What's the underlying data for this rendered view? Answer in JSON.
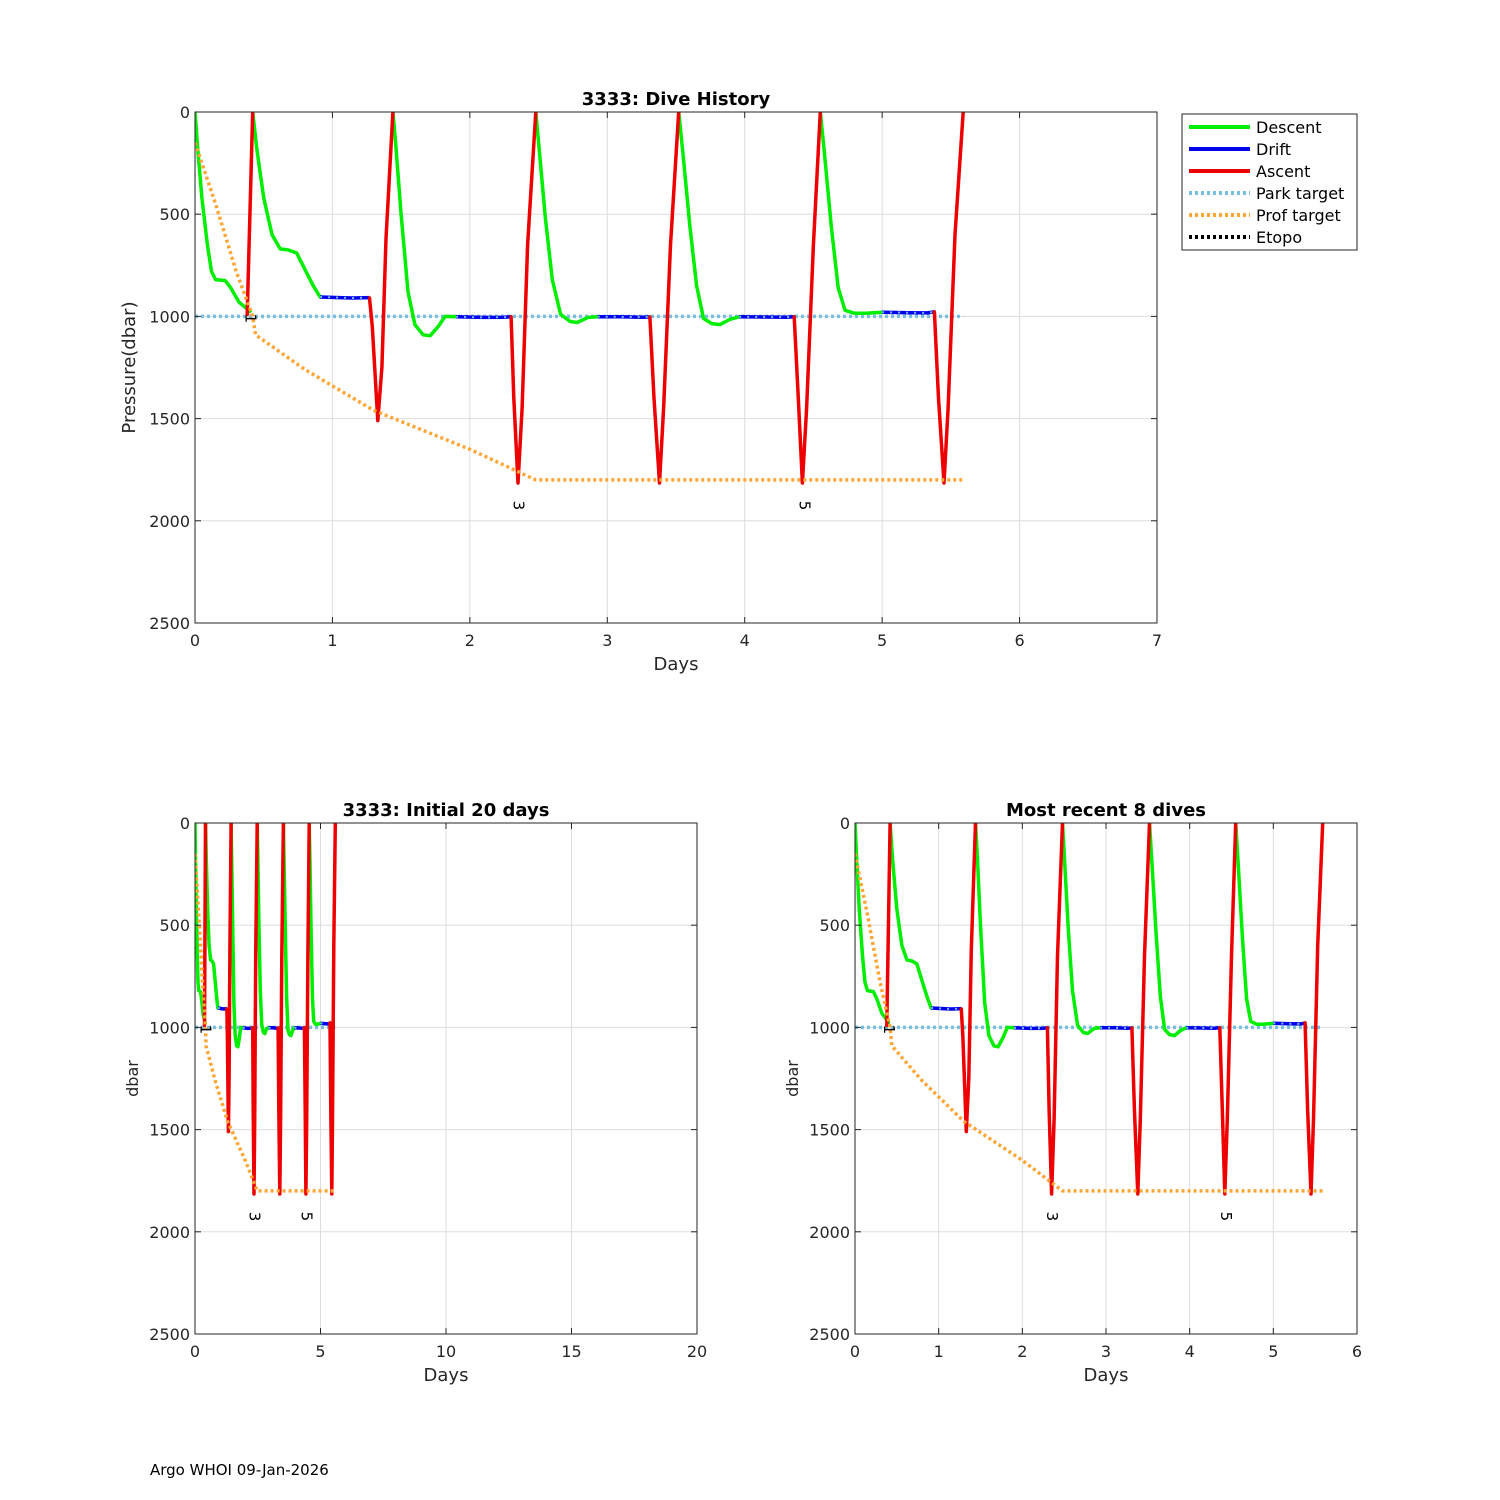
{
  "footer": "Argo WHOI 09-Jan-2026",
  "colors": {
    "descent": "#00ee00",
    "drift": "#0000ee",
    "ascent": "#ee0000",
    "park": "#77bfdf",
    "prof": "#ffa533",
    "etopo": "#000000",
    "grid": "#dddddd"
  },
  "legend": {
    "entries": [
      {
        "label": "Descent",
        "color": "#00ee00",
        "style": "solid"
      },
      {
        "label": "Drift",
        "color": "#0000ee",
        "style": "solid"
      },
      {
        "label": "Ascent",
        "color": "#ee0000",
        "style": "solid"
      },
      {
        "label": "Park target",
        "color": "#77bfdf",
        "style": "dotted"
      },
      {
        "label": "Prof target",
        "color": "#ffa533",
        "style": "dotted"
      },
      {
        "label": "Etopo",
        "color": "#000000",
        "style": "dotted"
      }
    ]
  },
  "chart_data": [
    {
      "id": "main",
      "type": "line",
      "title": "3333: Dive History",
      "xlabel": "Days",
      "ylabel": "Pressure(dbar)",
      "xlim": [
        0,
        7
      ],
      "ylim": [
        0,
        2500
      ],
      "y_reversed": true,
      "xticks": [
        0,
        1,
        2,
        3,
        4,
        5,
        6,
        7
      ],
      "yticks": [
        0,
        500,
        1000,
        1500,
        2000,
        2500
      ],
      "grid": true,
      "legend_position": "outside-top-right"
    },
    {
      "id": "initial",
      "type": "line",
      "title": "3333: Initial 20 days",
      "xlabel": "Days",
      "ylabel": "dbar",
      "xlim": [
        0,
        20
      ],
      "ylim": [
        0,
        2500
      ],
      "y_reversed": true,
      "xticks": [
        0,
        5,
        10,
        15,
        20
      ],
      "yticks": [
        0,
        500,
        1000,
        1500,
        2000,
        2500
      ],
      "grid": true
    },
    {
      "id": "recent",
      "type": "line",
      "title": "Most recent 8 dives",
      "xlabel": "Days",
      "ylabel": "dbar",
      "xlim": [
        0,
        6
      ],
      "ylim": [
        0,
        2500
      ],
      "y_reversed": true,
      "xticks": [
        0,
        1,
        2,
        3,
        4,
        5,
        6
      ],
      "yticks": [
        0,
        500,
        1000,
        1500,
        2000,
        2500
      ],
      "grid": true
    }
  ],
  "series": {
    "descent": [
      [
        [
          0,
          0
        ],
        [
          0.02,
          180
        ],
        [
          0.05,
          420
        ],
        [
          0.09,
          650
        ],
        [
          0.12,
          780
        ],
        [
          0.15,
          820
        ],
        [
          0.22,
          825
        ],
        [
          0.26,
          860
        ],
        [
          0.32,
          930
        ],
        [
          0.4,
          975
        ]
      ],
      [
        [
          0.42,
          0
        ],
        [
          0.45,
          180
        ],
        [
          0.5,
          420
        ],
        [
          0.56,
          600
        ],
        [
          0.62,
          670
        ],
        [
          0.68,
          675
        ],
        [
          0.74,
          690
        ],
        [
          0.8,
          770
        ],
        [
          0.86,
          850
        ],
        [
          0.91,
          905
        ]
      ],
      [
        [
          1.44,
          0
        ],
        [
          1.46,
          150
        ],
        [
          1.5,
          500
        ],
        [
          1.55,
          880
        ],
        [
          1.6,
          1040
        ],
        [
          1.66,
          1090
        ],
        [
          1.71,
          1095
        ],
        [
          1.77,
          1050
        ],
        [
          1.82,
          1000
        ],
        [
          1.9,
          1002
        ]
      ],
      [
        [
          2.48,
          0
        ],
        [
          2.5,
          150
        ],
        [
          2.55,
          520
        ],
        [
          2.6,
          820
        ],
        [
          2.66,
          990
        ],
        [
          2.73,
          1025
        ],
        [
          2.78,
          1030
        ],
        [
          2.86,
          1005
        ],
        [
          2.93,
          1002
        ]
      ],
      [
        [
          3.52,
          0
        ],
        [
          3.55,
          200
        ],
        [
          3.6,
          550
        ],
        [
          3.65,
          850
        ],
        [
          3.7,
          1010
        ],
        [
          3.76,
          1035
        ],
        [
          3.82,
          1040
        ],
        [
          3.89,
          1015
        ],
        [
          3.96,
          1002
        ]
      ],
      [
        [
          4.55,
          0
        ],
        [
          4.58,
          200
        ],
        [
          4.63,
          560
        ],
        [
          4.68,
          860
        ],
        [
          4.73,
          970
        ],
        [
          4.8,
          985
        ],
        [
          4.88,
          985
        ],
        [
          5.0,
          980
        ]
      ]
    ],
    "drift": [
      [
        [
          0.91,
          905
        ],
        [
          1.05,
          908
        ],
        [
          1.15,
          910
        ],
        [
          1.27,
          908
        ]
      ],
      [
        [
          1.9,
          1002
        ],
        [
          2.1,
          1005
        ],
        [
          2.25,
          1004
        ],
        [
          2.3,
          1002
        ]
      ],
      [
        [
          2.93,
          1002
        ],
        [
          3.1,
          1002
        ],
        [
          3.25,
          1004
        ],
        [
          3.31,
          1003
        ]
      ],
      [
        [
          3.96,
          1002
        ],
        [
          4.15,
          1003
        ],
        [
          4.3,
          1004
        ],
        [
          4.36,
          1002
        ]
      ],
      [
        [
          5.0,
          980
        ],
        [
          5.2,
          982
        ],
        [
          5.33,
          983
        ],
        [
          5.38,
          978
        ]
      ]
    ],
    "ascent": [
      [
        [
          0.38,
          990
        ],
        [
          0.42,
          0
        ]
      ],
      [
        [
          1.27,
          910
        ],
        [
          1.29,
          1050
        ],
        [
          1.33,
          1510
        ],
        [
          1.36,
          1250
        ],
        [
          1.39,
          620
        ],
        [
          1.44,
          0
        ]
      ],
      [
        [
          2.3,
          1002
        ],
        [
          2.32,
          1400
        ],
        [
          2.35,
          1815
        ],
        [
          2.38,
          1450
        ],
        [
          2.42,
          650
        ],
        [
          2.48,
          0
        ]
      ],
      [
        [
          3.31,
          1003
        ],
        [
          3.34,
          1400
        ],
        [
          3.38,
          1815
        ],
        [
          3.41,
          1450
        ],
        [
          3.46,
          650
        ],
        [
          3.52,
          0
        ]
      ],
      [
        [
          4.36,
          1002
        ],
        [
          4.39,
          1400
        ],
        [
          4.42,
          1815
        ],
        [
          4.45,
          1450
        ],
        [
          4.5,
          650
        ],
        [
          4.55,
          0
        ]
      ],
      [
        [
          5.38,
          978
        ],
        [
          5.41,
          1400
        ],
        [
          5.45,
          1815
        ],
        [
          5.48,
          1450
        ],
        [
          5.53,
          600
        ],
        [
          5.59,
          0
        ]
      ]
    ],
    "park_target": {
      "vertical": [
        [
          0,
          0
        ],
        [
          0,
          1000
        ]
      ],
      "horizontal": [
        [
          0,
          1000
        ],
        [
          5.59,
          1000
        ]
      ]
    },
    "prof_target": [
      [
        0.0,
        150
      ],
      [
        0.15,
        450
      ],
      [
        0.3,
        780
      ],
      [
        0.42,
        1000
      ],
      [
        0.44,
        1090
      ],
      [
        0.8,
        1260
      ],
      [
        1.3,
        1460
      ],
      [
        2.0,
        1650
      ],
      [
        2.48,
        1800
      ],
      [
        5.59,
        1800
      ]
    ],
    "profile_labels": [
      {
        "text": "1",
        "x": 0.4,
        "y": 1010
      },
      {
        "text": "3",
        "x": 2.35,
        "y": 1925
      },
      {
        "text": "5",
        "x": 4.43,
        "y": 1925
      }
    ]
  }
}
